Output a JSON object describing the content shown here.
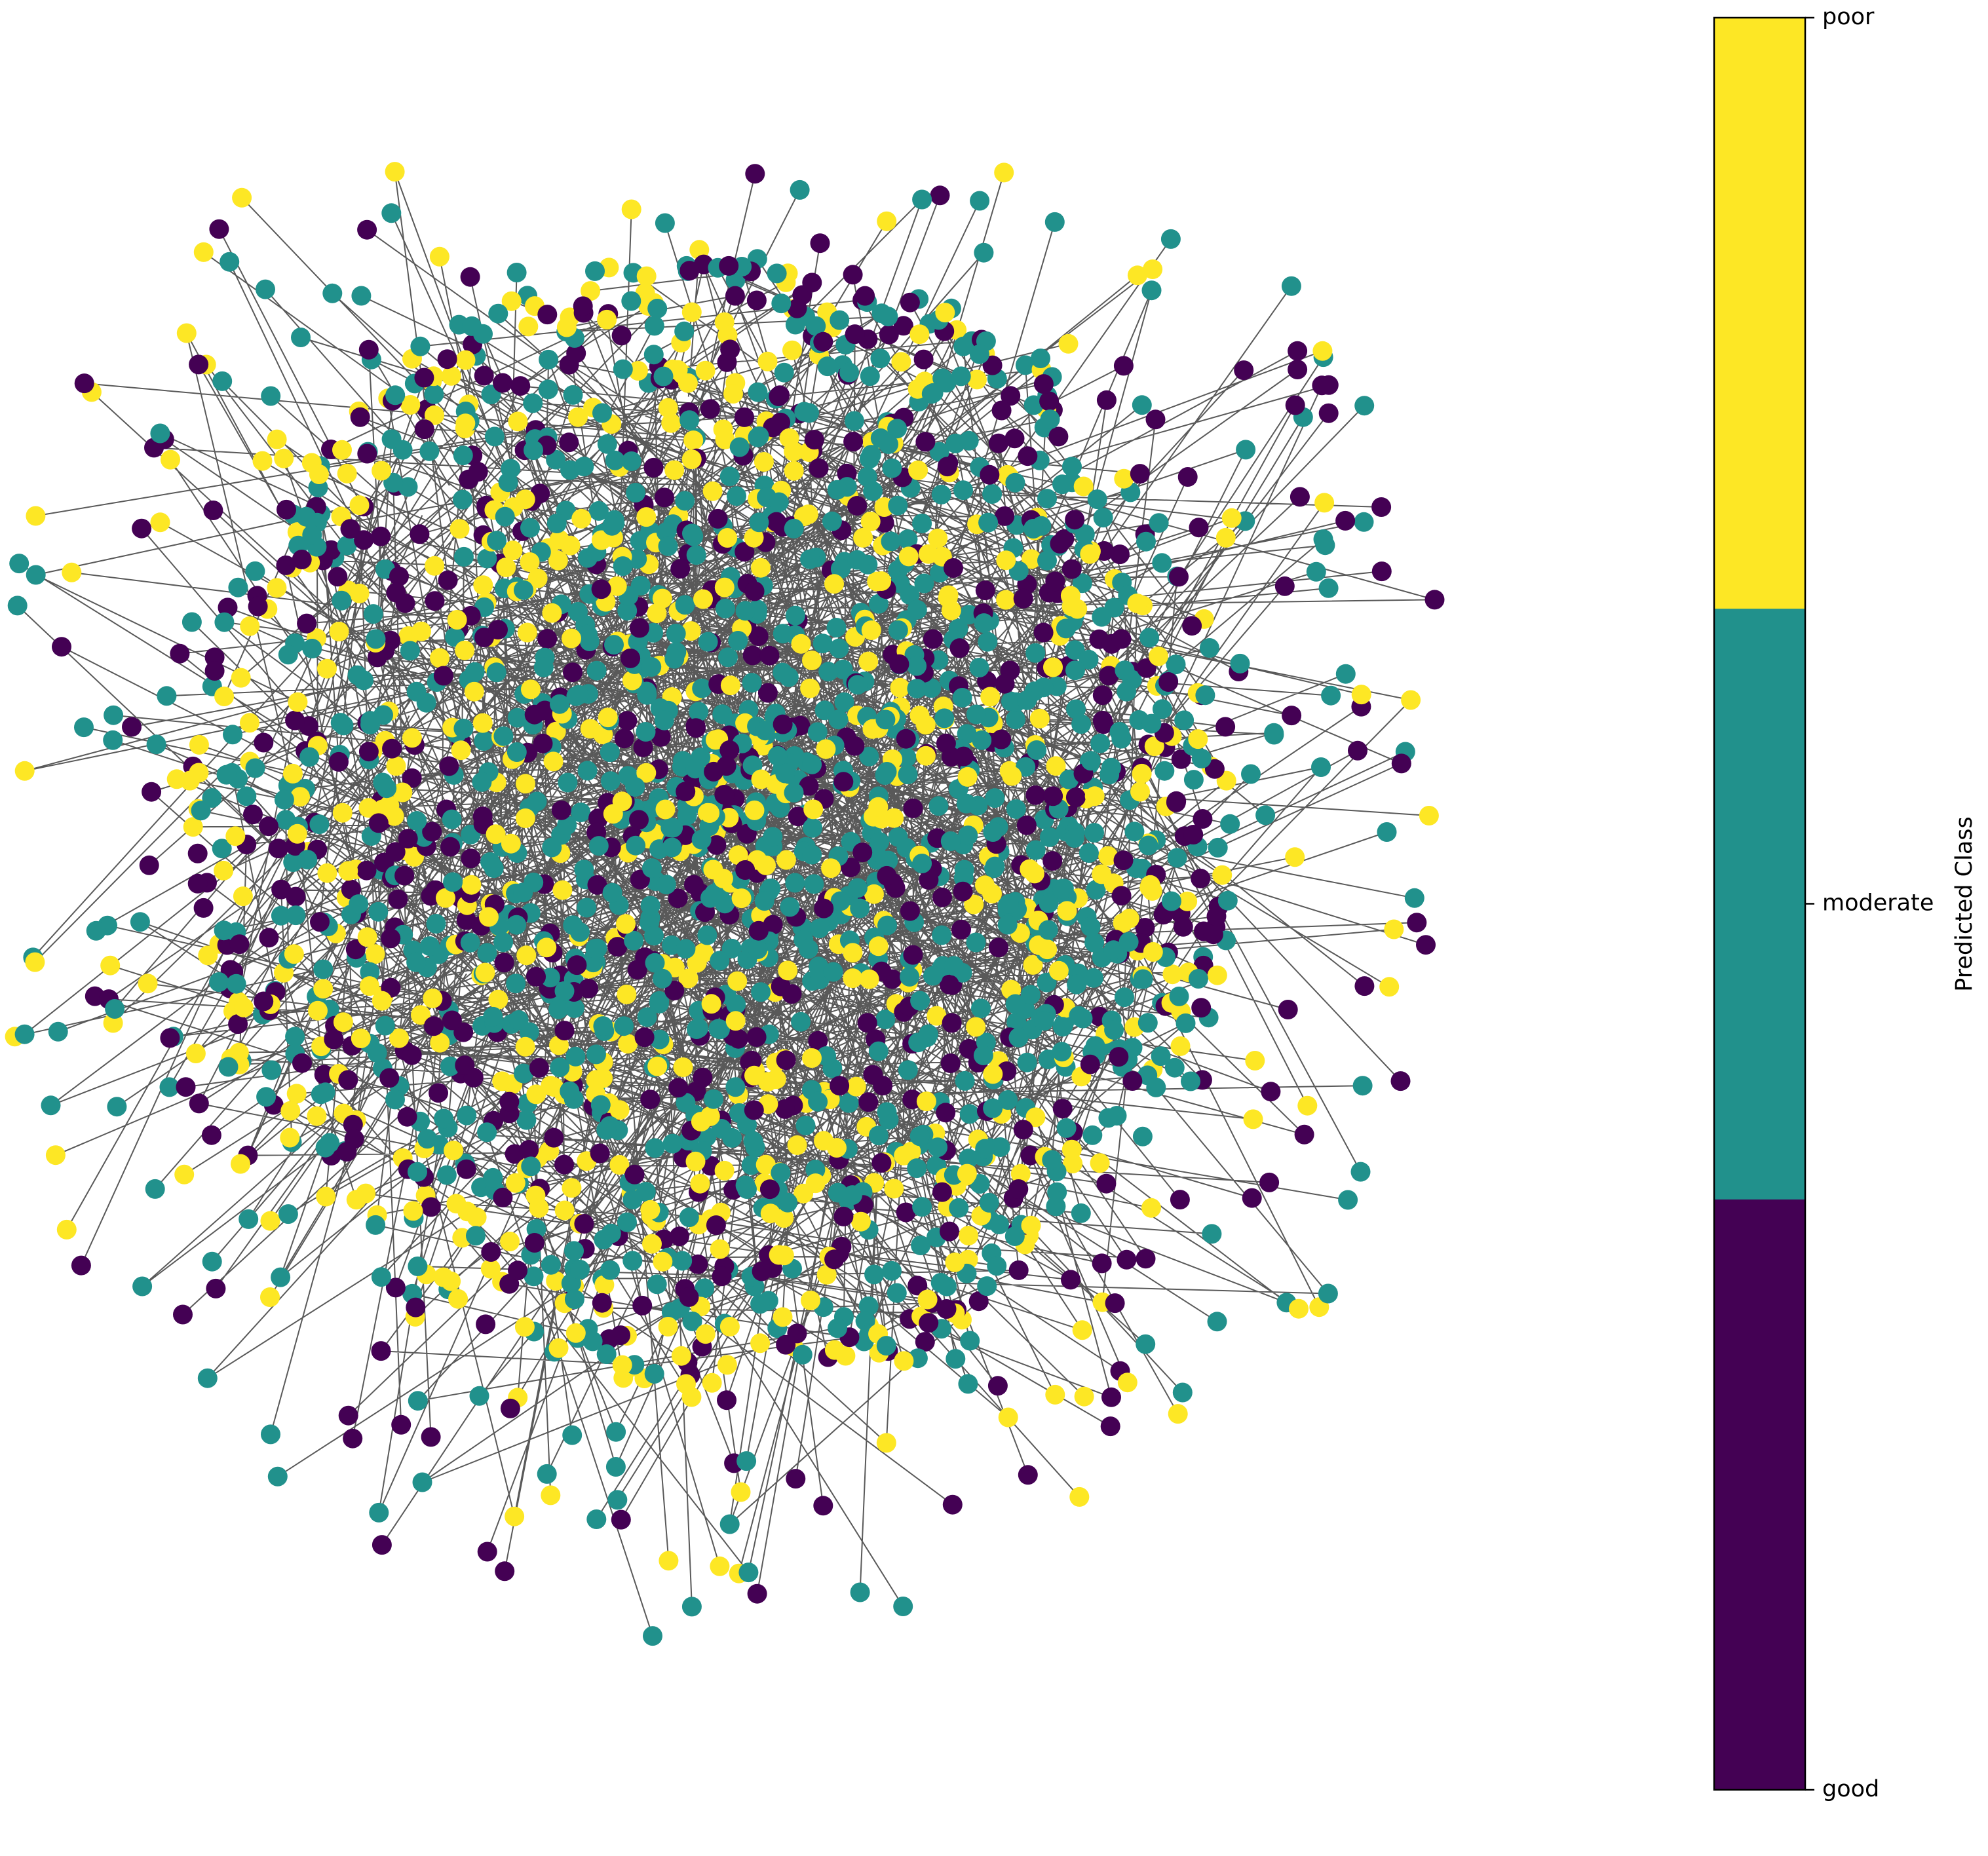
{
  "chart_data": {
    "type": "network",
    "colorbar_label": "Predicted Class",
    "classes": [
      "good",
      "moderate",
      "poor"
    ],
    "colors": [
      "#440154",
      "#21918c",
      "#fde725"
    ],
    "ylim": [
      0,
      2
    ],
    "yticks": [
      {
        "value": 0,
        "label": "good"
      },
      {
        "value": 1,
        "label": "moderate"
      },
      {
        "value": 2,
        "label": "poor"
      }
    ]
  }
}
